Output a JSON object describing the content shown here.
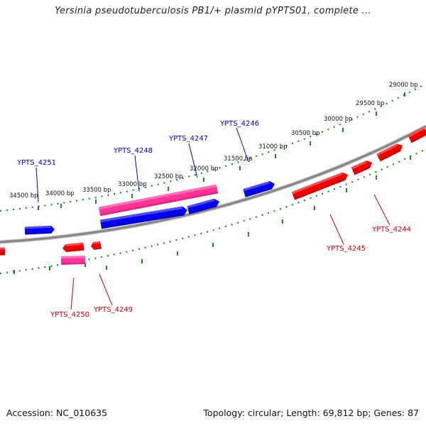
{
  "title": "Yersinia pseudotuberculosis PB1/+ plasmid pYPTS01, complete ...",
  "footer": {
    "accession": "Accession: NC_010635",
    "summary": "Topology: circular; Length: 69,812 bp; Genes: 87"
  },
  "colors": {
    "backbone": "#888888",
    "tick": "#1a8a1a",
    "forward_gene": "#0000ee",
    "reverse_gene": "#ee0000",
    "pink_gene": "#ff3399",
    "forward_label": "#0000cc",
    "reverse_label": "#cc0000"
  },
  "tick_labels": [
    {
      "label": "29000 bp"
    },
    {
      "label": "29500 bp"
    },
    {
      "label": "30000 bp"
    },
    {
      "label": "30500 bp"
    },
    {
      "label": "31000 bp"
    },
    {
      "label": "31500 bp"
    },
    {
      "label": "32000 bp"
    },
    {
      "label": "32500 bp"
    },
    {
      "label": "33000 bp"
    },
    {
      "label": "33500 bp"
    },
    {
      "label": "34000 bp"
    },
    {
      "label": "34500 bp"
    }
  ],
  "gene_labels": [
    {
      "id": "YPTS_4251",
      "strand": "forward"
    },
    {
      "id": "YPTS_4248",
      "strand": "forward"
    },
    {
      "id": "YPTS_4247",
      "strand": "forward"
    },
    {
      "id": "YPTS_4246",
      "strand": "forward"
    },
    {
      "id": "YPTS_4244",
      "strand": "reverse"
    },
    {
      "id": "YPTS_4245",
      "strand": "reverse"
    },
    {
      "id": "YPTS_4250",
      "strand": "reverse"
    },
    {
      "id": "YPTS_4249",
      "strand": "reverse"
    }
  ]
}
